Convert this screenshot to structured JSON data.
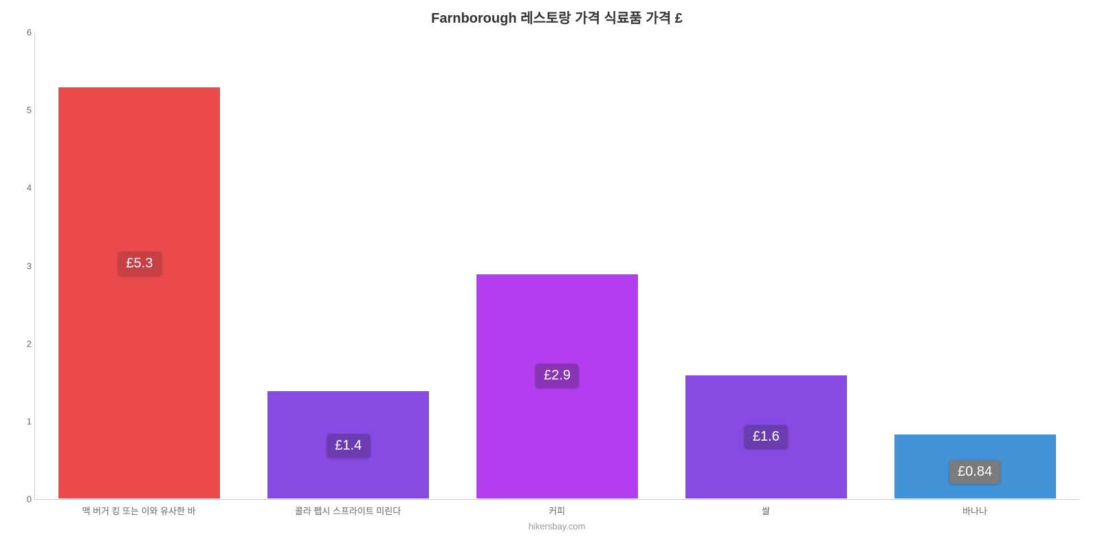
{
  "chart": {
    "type": "bar",
    "title": "Farnborough 레스토랑 가격 식료품 가격 £",
    "title_fontsize": 20,
    "title_color": "#333333",
    "background_color": "#ffffff",
    "axis_line_color": "#cccccc",
    "tick_color": "#666666",
    "tick_fontsize": 13,
    "y": {
      "min": 0,
      "max": 6,
      "step": 1,
      "ticks": [
        "0",
        "1",
        "2",
        "3",
        "4",
        "5",
        "6"
      ]
    },
    "categories": [
      "맥 버거 킹 또는 이와 유사한 바",
      "콜라 펩시 스프라이트 미린다",
      "커피",
      "쌀",
      "바나나"
    ],
    "values": [
      5.3,
      1.4,
      2.9,
      1.6,
      0.84
    ],
    "value_labels": [
      "£5.3",
      "£1.4",
      "£2.9",
      "£1.6",
      "£0.84"
    ],
    "bar_colors": [
      "#e9373a",
      "#7b38e2",
      "#ab2aee",
      "#7b38e2",
      "#2f88d4"
    ],
    "label_bg_colors": [
      "#c12b2e",
      "#5a28a8",
      "#7d1fae",
      "#5a28a8",
      "#6d6d6d"
    ],
    "label_text_color": "#ffffff",
    "label_fontsize": 20,
    "bar_width_ratio": 0.78,
    "bar_opacity": 0.9,
    "attribution": "hikersbay.com",
    "attribution_color": "#999999",
    "attribution_fontsize": 13
  }
}
